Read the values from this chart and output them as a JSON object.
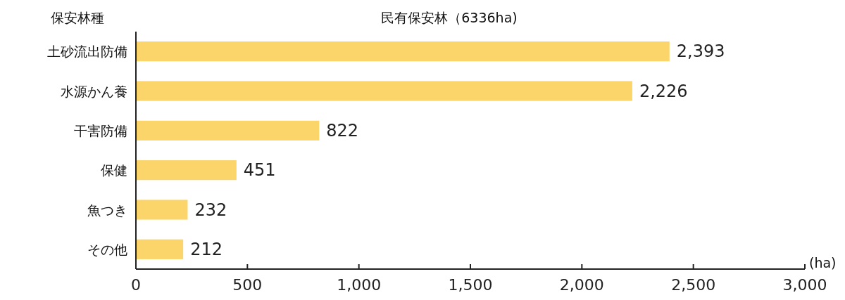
{
  "chart_data": {
    "type": "bar",
    "orientation": "horizontal",
    "title": "民有保安林（6336ha)",
    "ylabel": "保安林種",
    "xlabel": "(ha)",
    "categories": [
      "土砂流出防備",
      "水源かん養",
      "干害防備",
      "保健",
      "魚つき",
      "その他"
    ],
    "values": [
      2393,
      2226,
      822,
      451,
      232,
      212
    ],
    "value_labels": [
      "2,393",
      "2,226",
      "822",
      "451",
      "232",
      "212"
    ],
    "color": "#fbd46a",
    "xlim": [
      0,
      3000
    ],
    "xticks": [
      0,
      500,
      {
        "value": 1000,
        "label": "1,000"
      },
      {
        "value": 1500,
        "label": "1,500"
      },
      {
        "value": 2000,
        "label": "2,000"
      },
      {
        "value": 2500,
        "label": "2,500"
      },
      {
        "value": 3000,
        "label": "3,000"
      }
    ]
  }
}
